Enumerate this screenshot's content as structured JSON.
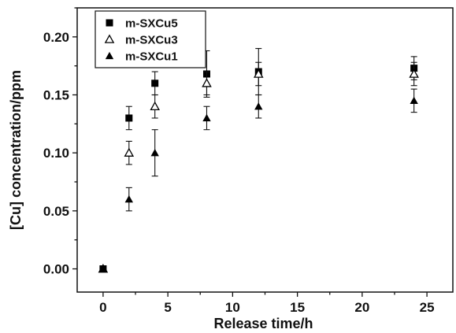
{
  "chart_data": {
    "type": "scatter",
    "title": "",
    "xlabel": "Release time/h",
    "ylabel": "[Cu] concentration/ppm",
    "xlim": [
      -2,
      27
    ],
    "ylim": [
      -0.02,
      0.225
    ],
    "xticks": [
      0,
      5,
      10,
      15,
      20,
      25
    ],
    "yticks": [
      0.0,
      0.05,
      0.1,
      0.15,
      0.2
    ],
    "ytick_labels": [
      "0.00",
      "0.05",
      "0.10",
      "0.15",
      "0.20"
    ],
    "grid": false,
    "legend_position": "top-left",
    "series": [
      {
        "name": "m-SXCu5",
        "marker": "square-filled",
        "color": "#000000",
        "x": [
          0,
          2,
          4,
          8,
          12,
          24
        ],
        "y": [
          0.0,
          0.13,
          0.16,
          0.168,
          0.17,
          0.173
        ],
        "error": [
          0.002,
          0.01,
          0.01,
          0.02,
          0.02,
          0.01
        ]
      },
      {
        "name": "m-SXCu3",
        "marker": "triangle-open",
        "color": "#000000",
        "x": [
          0,
          2,
          4,
          8,
          12,
          24
        ],
        "y": [
          0.0,
          0.1,
          0.14,
          0.16,
          0.168,
          0.168
        ],
        "error": [
          0.002,
          0.01,
          0.01,
          0.01,
          0.01,
          0.01
        ]
      },
      {
        "name": "m-SXCu1",
        "marker": "triangle-filled",
        "color": "#000000",
        "x": [
          0,
          2,
          4,
          8,
          12,
          24
        ],
        "y": [
          0.0,
          0.06,
          0.1,
          0.13,
          0.14,
          0.145
        ],
        "error": [
          0.002,
          0.01,
          0.02,
          0.01,
          0.01,
          0.01
        ]
      }
    ]
  }
}
